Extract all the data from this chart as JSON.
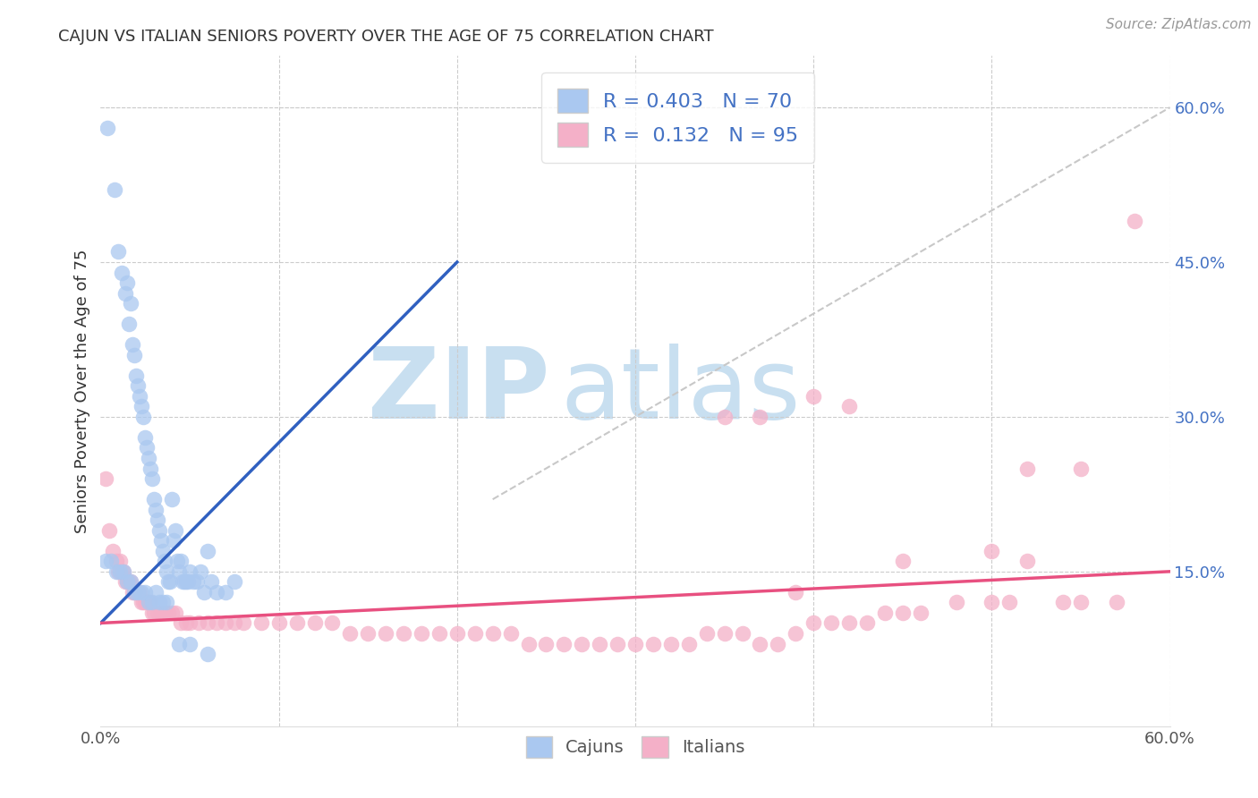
{
  "title": "CAJUN VS ITALIAN SENIORS POVERTY OVER THE AGE OF 75 CORRELATION CHART",
  "source": "Source: ZipAtlas.com",
  "ylabel": "Seniors Poverty Over the Age of 75",
  "xlim": [
    0.0,
    0.6
  ],
  "ylim": [
    -0.02,
    0.65
  ],
  "plot_ylim": [
    0.0,
    0.65
  ],
  "xticks": [
    0.0,
    0.1,
    0.2,
    0.3,
    0.4,
    0.5,
    0.6
  ],
  "yticks_right": [
    0.15,
    0.3,
    0.45,
    0.6
  ],
  "ytick_right_labels": [
    "15.0%",
    "30.0%",
    "45.0%",
    "60.0%"
  ],
  "xtick_labels": [
    "0.0%",
    "",
    "",
    "",
    "",
    "",
    "60.0%"
  ],
  "background_color": "#ffffff",
  "grid_color": "#cccccc",
  "watermark_zip": "ZIP",
  "watermark_atlas": "atlas",
  "watermark_color": "#c8dff0",
  "cajun_color": "#aac8f0",
  "italian_color": "#f4b0c8",
  "cajun_line_color": "#3060c0",
  "italian_line_color": "#e85080",
  "diagonal_line_color": "#c8c8c8",
  "legend_R_cajun": "0.403",
  "legend_N_cajun": "70",
  "legend_R_italian": "0.132",
  "legend_N_italian": "95",
  "cajun_x": [
    0.004,
    0.008,
    0.01,
    0.012,
    0.014,
    0.015,
    0.016,
    0.017,
    0.018,
    0.019,
    0.02,
    0.021,
    0.022,
    0.023,
    0.024,
    0.025,
    0.026,
    0.027,
    0.028,
    0.029,
    0.03,
    0.031,
    0.032,
    0.033,
    0.034,
    0.035,
    0.036,
    0.037,
    0.038,
    0.039,
    0.04,
    0.041,
    0.042,
    0.043,
    0.044,
    0.045,
    0.046,
    0.047,
    0.048,
    0.049,
    0.05,
    0.052,
    0.054,
    0.056,
    0.058,
    0.06,
    0.062,
    0.065,
    0.07,
    0.075,
    0.003,
    0.006,
    0.009,
    0.011,
    0.013,
    0.015,
    0.017,
    0.019,
    0.021,
    0.023,
    0.025,
    0.027,
    0.029,
    0.031,
    0.033,
    0.035,
    0.037,
    0.044,
    0.05,
    0.06
  ],
  "cajun_y": [
    0.58,
    0.52,
    0.46,
    0.44,
    0.42,
    0.43,
    0.39,
    0.41,
    0.37,
    0.36,
    0.34,
    0.33,
    0.32,
    0.31,
    0.3,
    0.28,
    0.27,
    0.26,
    0.25,
    0.24,
    0.22,
    0.21,
    0.2,
    0.19,
    0.18,
    0.17,
    0.16,
    0.15,
    0.14,
    0.14,
    0.22,
    0.18,
    0.19,
    0.16,
    0.15,
    0.16,
    0.14,
    0.14,
    0.14,
    0.14,
    0.15,
    0.14,
    0.14,
    0.15,
    0.13,
    0.17,
    0.14,
    0.13,
    0.13,
    0.14,
    0.16,
    0.16,
    0.15,
    0.15,
    0.15,
    0.14,
    0.14,
    0.13,
    0.13,
    0.13,
    0.13,
    0.12,
    0.12,
    0.13,
    0.12,
    0.12,
    0.12,
    0.08,
    0.08,
    0.07
  ],
  "italian_x": [
    0.003,
    0.005,
    0.007,
    0.009,
    0.01,
    0.011,
    0.012,
    0.013,
    0.014,
    0.015,
    0.016,
    0.017,
    0.018,
    0.019,
    0.02,
    0.021,
    0.022,
    0.023,
    0.024,
    0.025,
    0.026,
    0.027,
    0.028,
    0.029,
    0.03,
    0.032,
    0.034,
    0.036,
    0.038,
    0.04,
    0.042,
    0.045,
    0.048,
    0.05,
    0.055,
    0.06,
    0.065,
    0.07,
    0.075,
    0.08,
    0.09,
    0.1,
    0.11,
    0.12,
    0.13,
    0.14,
    0.15,
    0.16,
    0.17,
    0.18,
    0.19,
    0.2,
    0.21,
    0.22,
    0.23,
    0.24,
    0.25,
    0.26,
    0.27,
    0.28,
    0.29,
    0.3,
    0.31,
    0.32,
    0.33,
    0.34,
    0.35,
    0.36,
    0.37,
    0.38,
    0.39,
    0.4,
    0.41,
    0.42,
    0.43,
    0.44,
    0.45,
    0.46,
    0.48,
    0.5,
    0.51,
    0.52,
    0.54,
    0.55,
    0.57,
    0.58,
    0.4,
    0.42,
    0.45,
    0.5,
    0.52,
    0.55,
    0.35,
    0.37,
    0.39
  ],
  "italian_y": [
    0.24,
    0.19,
    0.17,
    0.16,
    0.15,
    0.16,
    0.15,
    0.15,
    0.14,
    0.14,
    0.14,
    0.14,
    0.13,
    0.13,
    0.13,
    0.13,
    0.13,
    0.12,
    0.12,
    0.12,
    0.12,
    0.12,
    0.12,
    0.11,
    0.11,
    0.11,
    0.11,
    0.11,
    0.11,
    0.11,
    0.11,
    0.1,
    0.1,
    0.1,
    0.1,
    0.1,
    0.1,
    0.1,
    0.1,
    0.1,
    0.1,
    0.1,
    0.1,
    0.1,
    0.1,
    0.09,
    0.09,
    0.09,
    0.09,
    0.09,
    0.09,
    0.09,
    0.09,
    0.09,
    0.09,
    0.08,
    0.08,
    0.08,
    0.08,
    0.08,
    0.08,
    0.08,
    0.08,
    0.08,
    0.08,
    0.09,
    0.09,
    0.09,
    0.08,
    0.08,
    0.09,
    0.1,
    0.1,
    0.1,
    0.1,
    0.11,
    0.11,
    0.11,
    0.12,
    0.12,
    0.12,
    0.16,
    0.12,
    0.12,
    0.12,
    0.49,
    0.32,
    0.31,
    0.16,
    0.17,
    0.25,
    0.25,
    0.3,
    0.3,
    0.13
  ],
  "cajun_line_x": [
    0.0,
    0.2
  ],
  "cajun_line_y": [
    0.1,
    0.45
  ],
  "italian_line_x": [
    0.0,
    0.6
  ],
  "italian_line_y": [
    0.1,
    0.15
  ]
}
